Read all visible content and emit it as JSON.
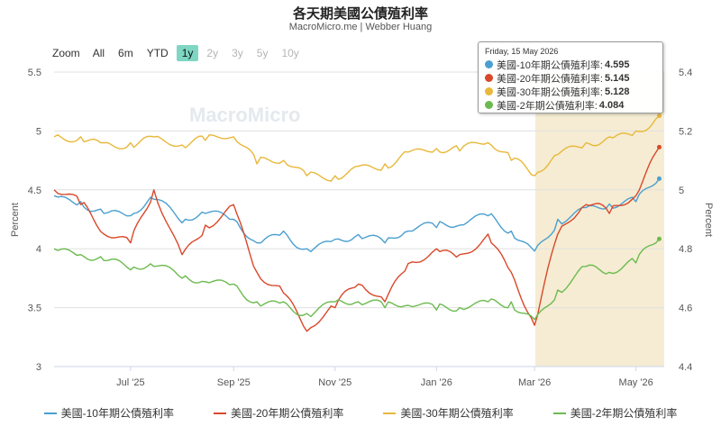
{
  "title": "各天期美國公債殖利率",
  "subtitle": "MacroMicro.me | Webber Huang",
  "watermark": "MacroMicro",
  "range_selector": {
    "zoom_label": "Zoom",
    "buttons": [
      {
        "label": "All",
        "state": "normal"
      },
      {
        "label": "6m",
        "state": "normal"
      },
      {
        "label": "YTD",
        "state": "normal"
      },
      {
        "label": "1y",
        "state": "active"
      },
      {
        "label": "2y",
        "state": "disabled"
      },
      {
        "label": "3y",
        "state": "disabled"
      },
      {
        "label": "5y",
        "state": "disabled"
      },
      {
        "label": "10y",
        "state": "disabled"
      }
    ]
  },
  "tooltip": {
    "date": "Friday, 15 May 2026",
    "rows": [
      {
        "label": "美國-10年期公債殖利率:",
        "value": "4.595",
        "color": "#4a9fd0"
      },
      {
        "label": "美國-20年期公債殖利率:",
        "value": "5.145",
        "color": "#d9482b"
      },
      {
        "label": "美國-30年期公債殖利率:",
        "value": "5.128",
        "color": "#e8b83a"
      },
      {
        "label": "美國-2年期公債殖利率:",
        "value": "4.084",
        "color": "#6cba4f"
      }
    ]
  },
  "chart_data": {
    "type": "line",
    "x_ticks": [
      "Jul '25",
      "Sep '25",
      "Nov '25",
      "Jan '26",
      "Mar '26",
      "May '26"
    ],
    "y_left": {
      "label": "Percent",
      "ticks": [
        "3",
        "3.5",
        "4",
        "4.5",
        "5",
        "5.5"
      ],
      "range": [
        3,
        5.5
      ]
    },
    "y_right": {
      "label": "Percent",
      "ticks": [
        "4.4",
        "4.6",
        "4.8",
        "5",
        "5.2",
        "5.4"
      ],
      "range": [
        4.4,
        5.4
      ]
    },
    "grid": true,
    "highlight_band": {
      "from": "Mar '26",
      "to": "15 May 2026"
    },
    "series": [
      {
        "name": "美國-10年期公債殖利率",
        "axis": "left",
        "color": "#4a9fd0",
        "x": [
          "2025-05-16",
          "2025-06-01",
          "2025-06-15",
          "2025-07-01",
          "2025-07-15",
          "2025-08-01",
          "2025-08-15",
          "2025-09-01",
          "2025-09-15",
          "2025-10-01",
          "2025-10-15",
          "2025-11-01",
          "2025-11-15",
          "2025-12-01",
          "2025-12-15",
          "2026-01-01",
          "2026-01-15",
          "2026-02-01",
          "2026-02-15",
          "2026-03-01",
          "2026-03-15",
          "2026-04-01",
          "2026-04-15",
          "2026-05-01",
          "2026-05-15"
        ],
        "values": [
          4.45,
          4.4,
          4.3,
          4.28,
          4.42,
          4.22,
          4.3,
          4.25,
          4.05,
          4.15,
          4.0,
          4.08,
          4.12,
          4.05,
          4.15,
          4.18,
          4.2,
          4.28,
          4.15,
          3.98,
          4.25,
          4.35,
          4.38,
          4.4,
          4.595
        ]
      },
      {
        "name": "美國-20年期公債殖利率",
        "axis": "right",
        "color": "#d9482b",
        "x": [
          "2025-05-16",
          "2025-06-01",
          "2025-06-15",
          "2025-07-01",
          "2025-07-15",
          "2025-08-01",
          "2025-08-15",
          "2025-09-01",
          "2025-09-15",
          "2025-10-01",
          "2025-10-15",
          "2025-11-01",
          "2025-11-15",
          "2025-12-01",
          "2025-12-15",
          "2026-01-01",
          "2026-01-15",
          "2026-02-01",
          "2026-02-15",
          "2026-03-01",
          "2026-03-15",
          "2026-04-01",
          "2026-04-15",
          "2026-05-01",
          "2026-05-15"
        ],
        "values": [
          5.0,
          4.95,
          4.85,
          4.82,
          5.0,
          4.78,
          4.88,
          4.95,
          4.72,
          4.65,
          4.52,
          4.6,
          4.68,
          4.62,
          4.75,
          4.8,
          4.78,
          4.85,
          4.72,
          4.54,
          4.85,
          4.95,
          4.92,
          4.98,
          5.145
        ]
      },
      {
        "name": "美國-30年期公債殖利率",
        "axis": "left",
        "color": "#e8b83a",
        "x": [
          "2025-05-16",
          "2025-06-01",
          "2025-06-15",
          "2025-07-01",
          "2025-07-15",
          "2025-08-01",
          "2025-08-15",
          "2025-09-01",
          "2025-09-15",
          "2025-10-01",
          "2025-10-15",
          "2025-11-01",
          "2025-11-15",
          "2025-12-01",
          "2025-12-15",
          "2026-01-01",
          "2026-01-15",
          "2026-02-01",
          "2026-02-15",
          "2026-03-01",
          "2026-03-15",
          "2026-04-01",
          "2026-04-15",
          "2026-05-01",
          "2026-05-15"
        ],
        "values": [
          4.95,
          4.95,
          4.9,
          4.9,
          4.95,
          4.88,
          4.92,
          4.95,
          4.72,
          4.75,
          4.62,
          4.62,
          4.7,
          4.72,
          4.82,
          4.85,
          4.83,
          4.9,
          4.75,
          4.62,
          4.8,
          4.9,
          4.95,
          5.0,
          5.128
        ]
      },
      {
        "name": "美國-2年期公債殖利率",
        "axis": "left",
        "color": "#6cba4f",
        "x": [
          "2025-05-16",
          "2025-06-01",
          "2025-06-15",
          "2025-07-01",
          "2025-07-15",
          "2025-08-01",
          "2025-08-15",
          "2025-09-01",
          "2025-09-15",
          "2025-10-01",
          "2025-10-15",
          "2025-11-01",
          "2025-11-15",
          "2025-12-01",
          "2025-12-15",
          "2026-01-01",
          "2026-01-15",
          "2026-02-01",
          "2026-02-15",
          "2026-03-01",
          "2026-03-15",
          "2026-04-01",
          "2026-04-15",
          "2026-05-01",
          "2026-05-15"
        ],
        "values": [
          4.0,
          3.95,
          3.9,
          3.82,
          3.85,
          3.75,
          3.72,
          3.7,
          3.55,
          3.55,
          3.45,
          3.55,
          3.55,
          3.5,
          3.52,
          3.48,
          3.5,
          3.55,
          3.55,
          3.4,
          3.65,
          3.85,
          3.8,
          3.88,
          4.084
        ]
      }
    ]
  }
}
